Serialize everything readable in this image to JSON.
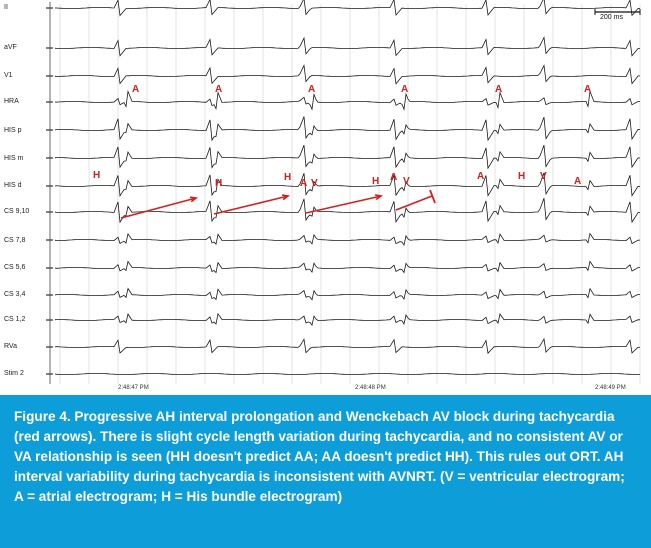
{
  "leads": [
    "II",
    "aVF",
    "V1",
    "HRA",
    "HIS p",
    "HIS m",
    "HIS d",
    "CS 9,10",
    "CS 7,8",
    "CS 5,6",
    "CS 3,4",
    "CS 1,2",
    "RVa",
    "Stim 2"
  ],
  "scale_bar_label": "200 ms",
  "timestamps": [
    "2:48:47 PM",
    "2:48:48 PM",
    "2:48:49 PM"
  ],
  "markers": {
    "A": "A",
    "H": "H",
    "V": "V"
  },
  "colors": {
    "annotation": "#d42020",
    "caption_background": "#0d9dd8",
    "caption_text": "#ffffff",
    "trace": "#1a1a1a"
  },
  "caption": "Figure 4. Progressive AH interval prolongation and Wenckebach AV block during tachycardia (red arrows). There is slight cycle length variation during tachycardia, and no consistent AV or VA relationship is seen (HH doesn't predict AA; AA doesn't predict HH). This rules out ORT. AH interval variability during tachycardia is inconsistent with AVNRT. (V = ventricular electrogram; A = atrial electrogram; H = His bundle electrogram)"
}
